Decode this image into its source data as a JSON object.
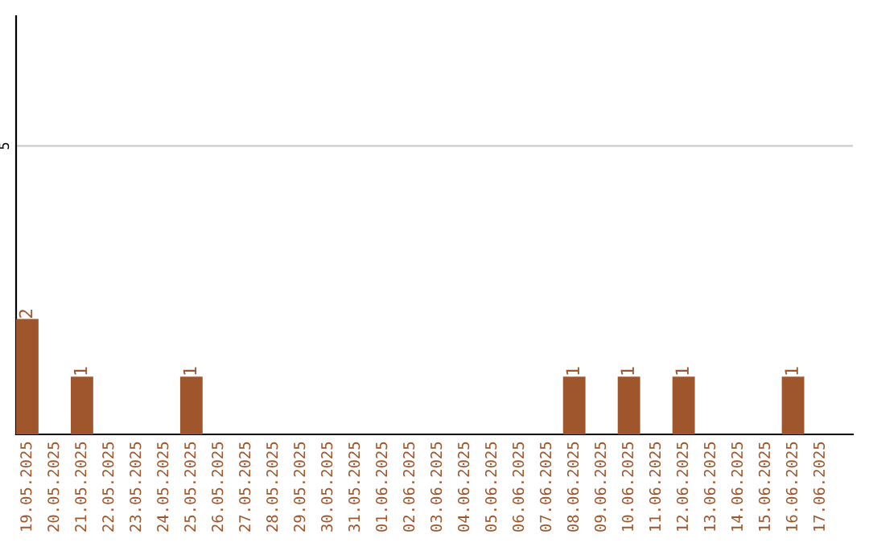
{
  "chart_data": {
    "type": "bar",
    "categories": [
      "19.05.2025",
      "20.05.2025",
      "21.05.2025",
      "22.05.2025",
      "23.05.2025",
      "24.05.2025",
      "25.05.2025",
      "26.05.2025",
      "27.05.2025",
      "28.05.2025",
      "29.05.2025",
      "30.05.2025",
      "31.05.2025",
      "01.06.2025",
      "02.06.2025",
      "03.06.2025",
      "04.06.2025",
      "05.06.2025",
      "06.06.2025",
      "07.06.2025",
      "08.06.2025",
      "09.06.2025",
      "10.06.2025",
      "11.06.2025",
      "12.06.2025",
      "13.06.2025",
      "14.06.2025",
      "15.06.2025",
      "16.06.2025",
      "17.06.2025"
    ],
    "values": [
      2,
      0,
      1,
      0,
      0,
      0,
      1,
      0,
      0,
      0,
      0,
      0,
      0,
      0,
      0,
      0,
      0,
      0,
      0,
      0,
      1,
      0,
      1,
      0,
      1,
      0,
      0,
      0,
      1,
      0
    ],
    "value_labels": [
      "2",
      null,
      "1",
      null,
      null,
      null,
      "1",
      null,
      null,
      null,
      null,
      null,
      null,
      null,
      null,
      null,
      null,
      null,
      null,
      null,
      "1",
      null,
      "1",
      null,
      "1",
      null,
      null,
      null,
      "1",
      null
    ],
    "color": "#a0562c",
    "ylim": [
      0,
      7.25
    ],
    "yticks": [
      5
    ],
    "grid": "y"
  }
}
